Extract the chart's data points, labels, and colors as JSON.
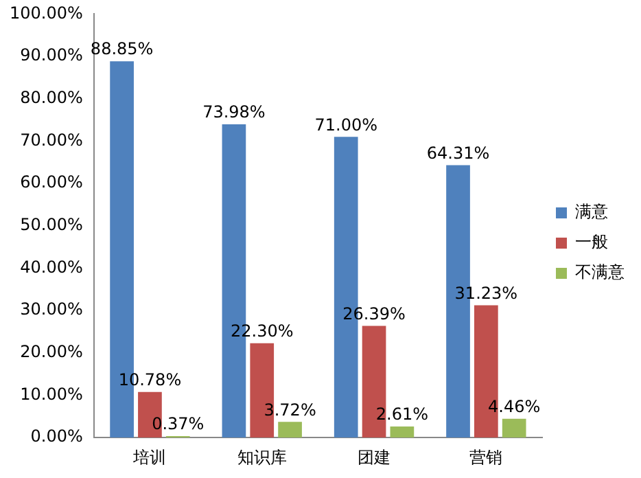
{
  "chart_data": {
    "type": "bar",
    "categories": [
      "培训",
      "知识库",
      "团建",
      "营销"
    ],
    "series": [
      {
        "name": "满意",
        "color": "#4f81bd",
        "values": [
          88.85,
          73.98,
          71.0,
          64.31
        ],
        "value_labels": [
          "88.85%",
          "73.98%",
          "71.00%",
          "64.31%"
        ]
      },
      {
        "name": "一般",
        "color": "#c0504d",
        "values": [
          10.78,
          22.3,
          26.39,
          31.23
        ],
        "value_labels": [
          "10.78%",
          "22.30%",
          "26.39%",
          "31.23%"
        ]
      },
      {
        "name": "不满意",
        "color": "#9bbb59",
        "values": [
          0.37,
          3.72,
          2.61,
          4.46
        ],
        "value_labels": [
          "0.37%",
          "3.72%",
          "2.61%",
          "4.46%"
        ]
      }
    ],
    "ylim": [
      0,
      100
    ],
    "yticks": [
      {
        "value": 0,
        "label": "0.00%"
      },
      {
        "value": 10,
        "label": "10.00%"
      },
      {
        "value": 20,
        "label": "20.00%"
      },
      {
        "value": 30,
        "label": "30.00%"
      },
      {
        "value": 40,
        "label": "40.00%"
      },
      {
        "value": 50,
        "label": "50.00%"
      },
      {
        "value": 60,
        "label": "60.00%"
      },
      {
        "value": 70,
        "label": "70.00%"
      },
      {
        "value": 80,
        "label": "80.00%"
      },
      {
        "value": 90,
        "label": "90.00%"
      },
      {
        "value": 100,
        "label": "100.00%"
      }
    ],
    "grid": false,
    "legend": "right"
  }
}
